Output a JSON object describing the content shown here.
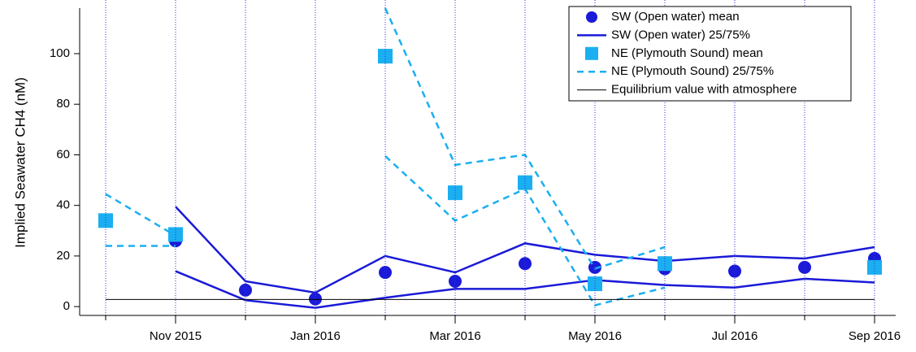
{
  "chart_data": {
    "type": "line",
    "y_label": "Implied Seawater CH4 (nM)",
    "categories": [
      null,
      "Nov 2015",
      null,
      "Jan 2016",
      null,
      "Mar 2016",
      null,
      "May 2016",
      null,
      "Jul 2016",
      null,
      "Sep 2016"
    ],
    "ylim": [
      -3.5,
      118
    ],
    "yticks": [
      0,
      20,
      40,
      60,
      80,
      100
    ],
    "xgrid": true,
    "legend": "top-right",
    "series": [
      {
        "name": "SW (Open water) mean",
        "color": "#1a1ad8",
        "marker": "circle",
        "values": [
          null,
          26,
          6.5,
          3,
          13.5,
          10,
          17,
          15.5,
          15,
          14,
          15.5,
          19
        ]
      },
      {
        "name": "SW (Open water) 25/75%",
        "color": "#1a1ad8",
        "line": "solid",
        "values": [
          null,
          39.5,
          10,
          5.5,
          20,
          13.5,
          25,
          20.5,
          18,
          20,
          19,
          23.5
        ]
      },
      {
        "color": "#1a1ad8",
        "line": "solid",
        "values": [
          null,
          14,
          2.5,
          -0.5,
          3.5,
          7,
          7,
          10.5,
          8.5,
          7.5,
          11,
          9.5
        ]
      },
      {
        "name": "NE (Plymouth Sound) mean",
        "color": "#1aaff0",
        "marker": "square",
        "values": [
          34,
          28.5,
          null,
          null,
          99,
          45,
          49,
          9,
          17,
          null,
          null,
          15.5
        ]
      },
      {
        "name": "NE (Plymouth Sound) 25/75%",
        "color": "#1aaff0",
        "line": "dashed",
        "values": [
          44.5,
          28,
          null,
          null,
          118,
          56,
          60,
          15,
          23.5,
          null,
          null,
          null
        ]
      },
      {
        "color": "#1aaff0",
        "line": "dashed",
        "values": [
          24,
          24,
          null,
          null,
          59.5,
          34,
          46.5,
          0.5,
          7.5,
          null,
          null,
          null
        ]
      },
      {
        "name": "Equilibrium value with atmosphere",
        "color": "#000000",
        "line": "thin",
        "values": [
          2.8,
          2.8,
          2.8,
          2.8,
          2.8,
          2.8,
          2.8,
          2.8,
          2.8,
          2.8,
          2.8,
          2.8
        ]
      }
    ]
  }
}
